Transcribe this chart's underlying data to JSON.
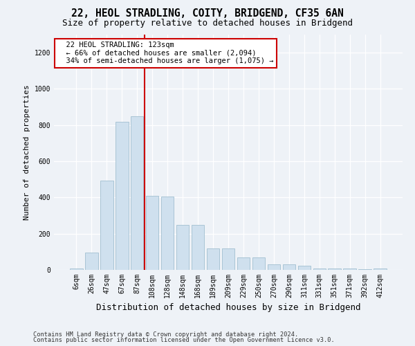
{
  "title": "22, HEOL STRADLING, COITY, BRIDGEND, CF35 6AN",
  "subtitle": "Size of property relative to detached houses in Bridgend",
  "xlabel": "Distribution of detached houses by size in Bridgend",
  "ylabel": "Number of detached properties",
  "categories": [
    "6sqm",
    "26sqm",
    "47sqm",
    "67sqm",
    "87sqm",
    "108sqm",
    "128sqm",
    "148sqm",
    "168sqm",
    "189sqm",
    "209sqm",
    "229sqm",
    "250sqm",
    "270sqm",
    "290sqm",
    "311sqm",
    "331sqm",
    "351sqm",
    "371sqm",
    "392sqm",
    "412sqm"
  ],
  "bar_heights": [
    8,
    95,
    495,
    820,
    850,
    410,
    405,
    248,
    248,
    118,
    118,
    68,
    68,
    32,
    32,
    22,
    8,
    8,
    8,
    4,
    8
  ],
  "bar_color": "#cfe0ee",
  "bar_edge_color": "#a0bfd0",
  "vline_x": 4.5,
  "vline_color": "#cc0000",
  "annotation_text": "  22 HEOL STRADLING: 123sqm\n  ← 66% of detached houses are smaller (2,094)\n  34% of semi-detached houses are larger (1,075) →",
  "annotation_box_color": "#ffffff",
  "annotation_box_edge": "#cc0000",
  "ylim": [
    0,
    1300
  ],
  "yticks": [
    0,
    200,
    400,
    600,
    800,
    1000,
    1200
  ],
  "footer1": "Contains HM Land Registry data © Crown copyright and database right 2024.",
  "footer2": "Contains public sector information licensed under the Open Government Licence v3.0.",
  "bg_color": "#eef2f7",
  "plot_bg_color": "#eef2f7",
  "title_fontsize": 10.5,
  "subtitle_fontsize": 9,
  "tick_fontsize": 7,
  "ylabel_fontsize": 8,
  "xlabel_fontsize": 9,
  "footer_fontsize": 6.2
}
